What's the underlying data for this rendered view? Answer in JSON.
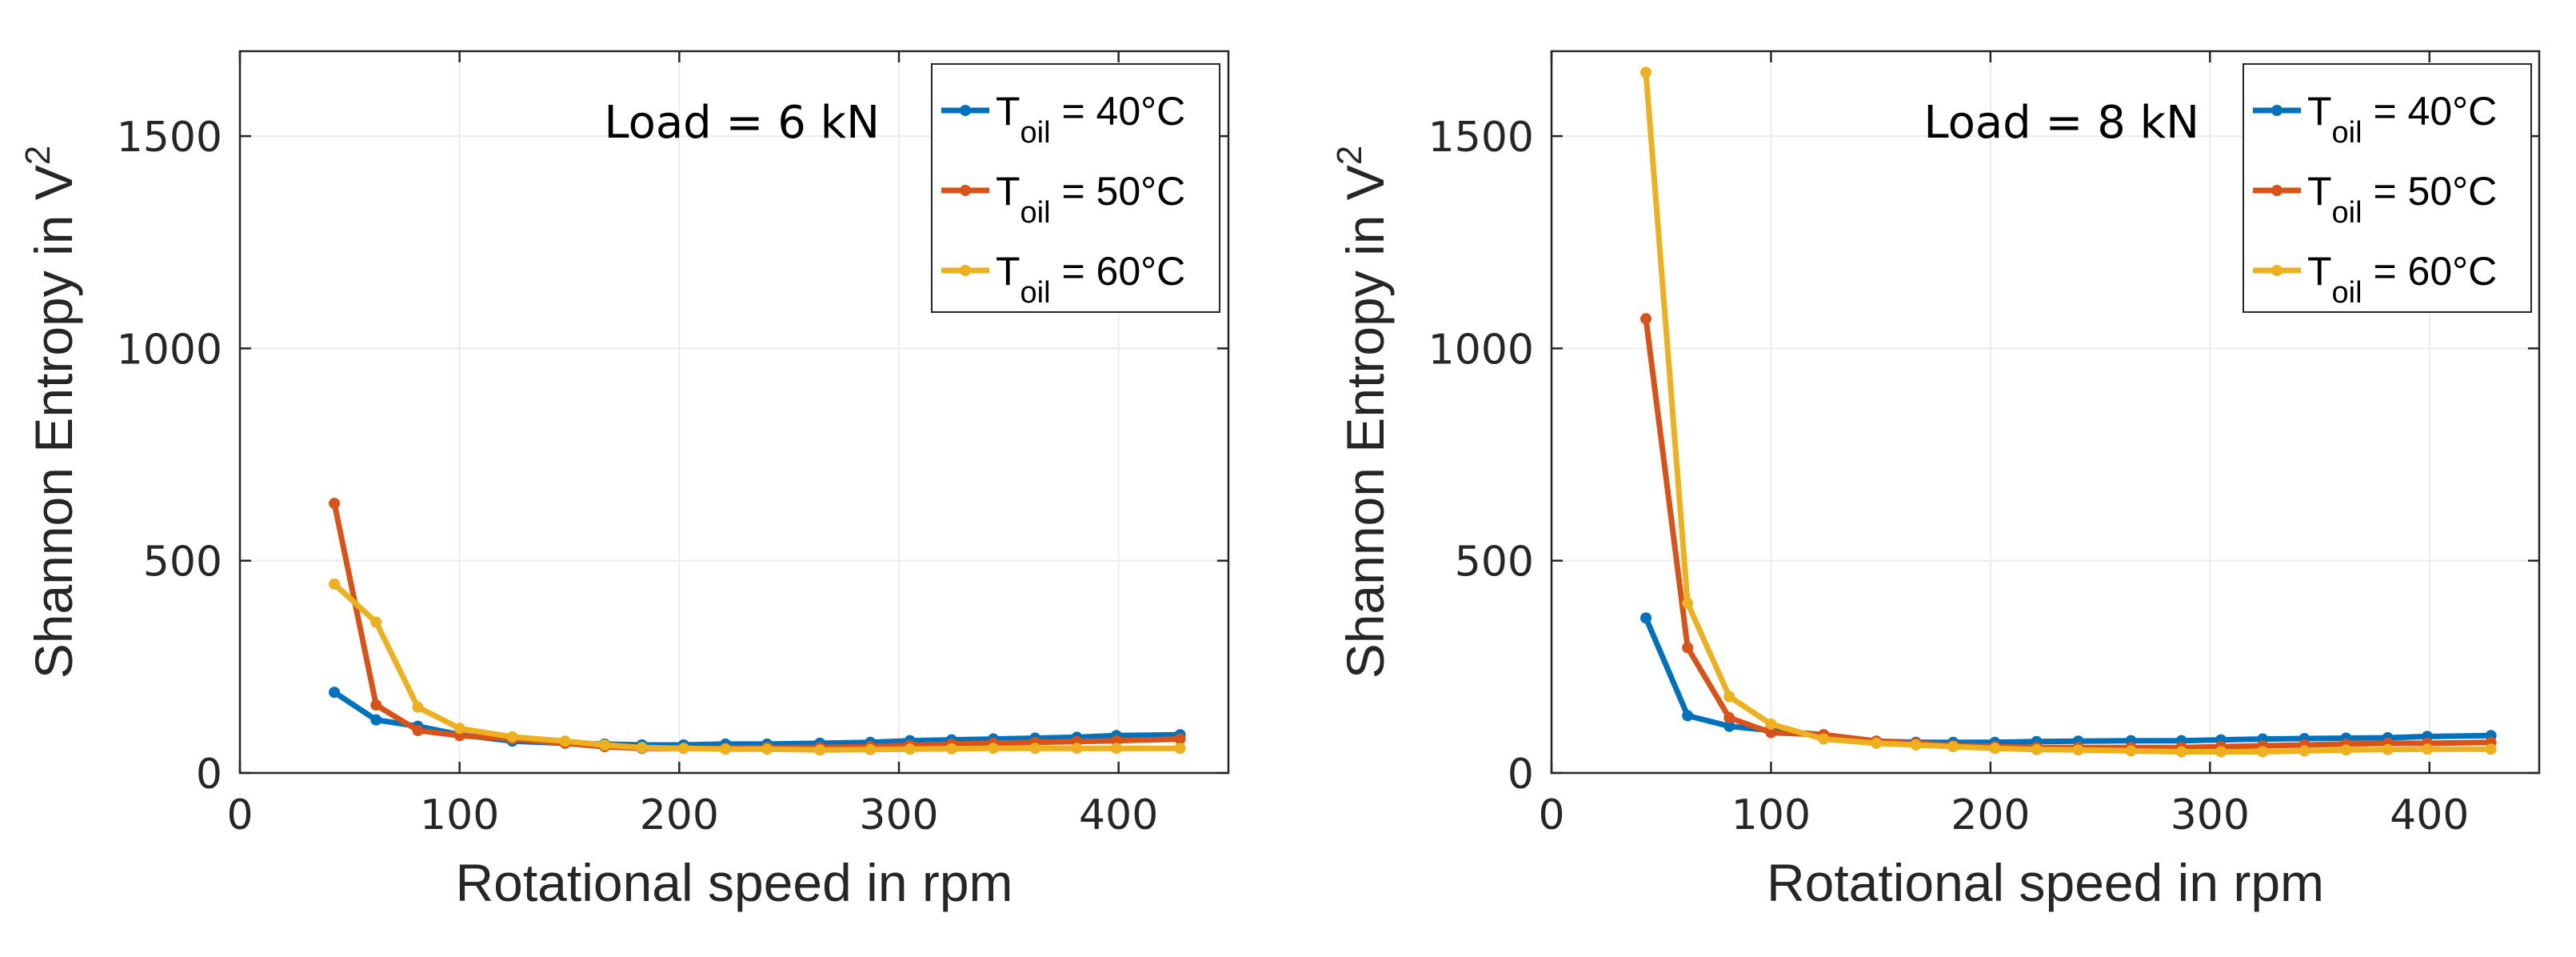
{
  "chart_data": [
    {
      "type": "line",
      "annotation": "Load = 6 kN",
      "xlabel": "Rotational speed in rpm",
      "ylabel": "Shannon Entropy in V",
      "ylabel_sup": "2",
      "xlim": [
        0,
        450
      ],
      "ylim": [
        0,
        1700
      ],
      "xticks": [
        0,
        100,
        200,
        300,
        400
      ],
      "yticks": [
        0,
        500,
        1000,
        1500
      ],
      "grid": true,
      "legend_position": "top-right",
      "x": [
        43,
        62,
        81,
        100,
        124,
        148,
        166,
        183,
        202,
        221,
        240,
        264,
        287,
        305,
        324,
        343,
        362,
        381,
        399,
        428
      ],
      "series": [
        {
          "name": "T_oil = 40°C",
          "color": "#0072BD",
          "values": [
            190,
            125,
            110,
            90,
            75,
            70,
            68,
            66,
            66,
            68,
            68,
            70,
            72,
            76,
            78,
            80,
            82,
            84,
            88,
            90
          ]
        },
        {
          "name": "T_oil = 50°C",
          "color": "#D95319",
          "values": [
            635,
            160,
            100,
            88,
            80,
            70,
            62,
            58,
            58,
            58,
            60,
            60,
            62,
            65,
            68,
            70,
            72,
            74,
            76,
            80
          ]
        },
        {
          "name": "T_oil = 60°C",
          "color": "#EDB120",
          "values": [
            445,
            355,
            155,
            105,
            85,
            75,
            66,
            60,
            58,
            56,
            56,
            54,
            55,
            56,
            57,
            58,
            58,
            58,
            58,
            58
          ]
        }
      ]
    },
    {
      "type": "line",
      "annotation": "Load = 8 kN",
      "xlabel": "Rotational speed in rpm",
      "ylabel": "Shannon Entropy in V",
      "ylabel_sup": "2",
      "xlim": [
        0,
        450
      ],
      "ylim": [
        0,
        1700
      ],
      "xticks": [
        0,
        100,
        200,
        300,
        400
      ],
      "yticks": [
        0,
        500,
        1000,
        1500
      ],
      "grid": true,
      "legend_position": "top-right",
      "x": [
        43,
        62,
        81,
        100,
        124,
        148,
        166,
        183,
        202,
        221,
        240,
        264,
        287,
        305,
        324,
        343,
        362,
        381,
        399,
        428
      ],
      "series": [
        {
          "name": "T_oil = 40°C",
          "color": "#0072BD",
          "values": [
            365,
            135,
            110,
            100,
            90,
            75,
            72,
            72,
            72,
            74,
            75,
            76,
            76,
            78,
            80,
            81,
            82,
            83,
            86,
            88
          ]
        },
        {
          "name": "T_oil = 50°C",
          "color": "#D95319",
          "values": [
            1070,
            295,
            130,
            95,
            90,
            75,
            70,
            65,
            62,
            60,
            60,
            60,
            60,
            62,
            64,
            66,
            68,
            70,
            70,
            72
          ]
        },
        {
          "name": "T_oil = 60°C",
          "color": "#EDB120",
          "values": [
            1650,
            400,
            180,
            115,
            80,
            70,
            66,
            62,
            58,
            55,
            54,
            52,
            50,
            50,
            50,
            52,
            54,
            55,
            56,
            56
          ]
        }
      ]
    }
  ],
  "legend": {
    "base": "T",
    "sub": "oil",
    "entries": [
      " = 40°C",
      " = 50°C",
      " = 60°C"
    ]
  }
}
